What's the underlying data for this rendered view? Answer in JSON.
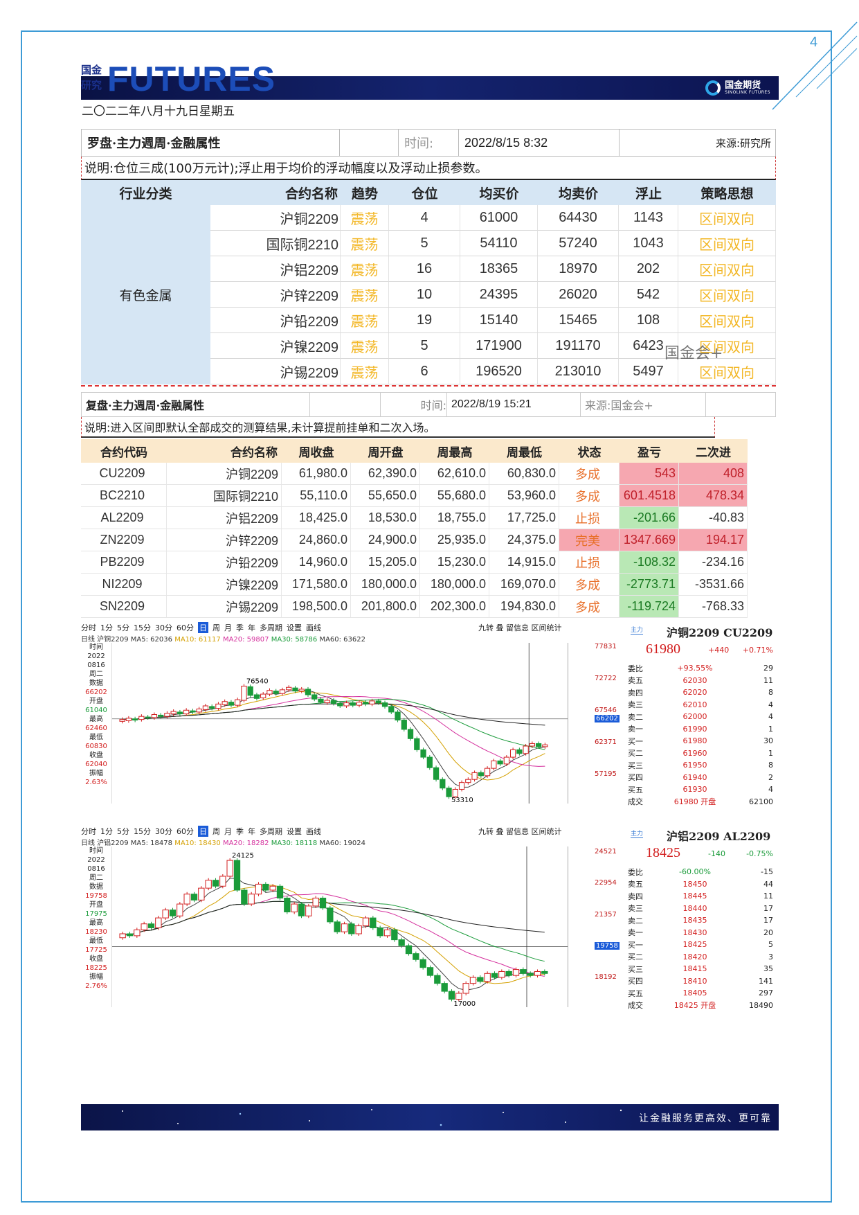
{
  "page_number": "4",
  "header": {
    "brand_small_1": "国金",
    "brand_small_2": "研究",
    "brand_big": "FUTURES",
    "logo_text": "国金期货",
    "logo_sub": "SINOLINK FUTURES"
  },
  "date_line": "二〇二二年八月十九日星期五",
  "table1": {
    "title": "罗盘·主力週周·金融属性",
    "time_label": "时间:",
    "time_value": "2022/8/15 8:32",
    "source": "来源:研究所",
    "note": "说明:仓位三成(100万元计);浮止用于均价的浮动幅度以及浮动止损参数。",
    "headers": [
      "行业分类",
      "合约名称",
      "趋势",
      "仓位",
      "均买价",
      "均卖价",
      "浮止",
      "策略思想"
    ],
    "category": "有色金属",
    "rows": [
      {
        "name": "沪铜2209",
        "trend": "震荡",
        "pos": "4",
        "buy": "61000",
        "sell": "64430",
        "stop": "1143",
        "strategy": "区间双向"
      },
      {
        "name": "国际铜2210",
        "trend": "震荡",
        "pos": "5",
        "buy": "54110",
        "sell": "57240",
        "stop": "1043",
        "strategy": "区间双向"
      },
      {
        "name": "沪铝2209",
        "trend": "震荡",
        "pos": "16",
        "buy": "18365",
        "sell": "18970",
        "stop": "202",
        "strategy": "区间双向"
      },
      {
        "name": "沪锌2209",
        "trend": "震荡",
        "pos": "10",
        "buy": "24395",
        "sell": "26020",
        "stop": "542",
        "strategy": "区间双向"
      },
      {
        "name": "沪铅2209",
        "trend": "震荡",
        "pos": "19",
        "buy": "15140",
        "sell": "15465",
        "stop": "108",
        "strategy": "区间双向"
      },
      {
        "name": "沪镍2209",
        "trend": "震荡",
        "pos": "5",
        "buy": "171900",
        "sell": "191170",
        "stop": "6423",
        "strategy": "区间双向"
      },
      {
        "name": "沪锡2209",
        "trend": "震荡",
        "pos": "6",
        "buy": "196520",
        "sell": "213010",
        "stop": "5497",
        "strategy": "区间双向"
      }
    ]
  },
  "watermark": "国金会+",
  "table2": {
    "title": "复盘·主力週周·金融属性",
    "time_label": "时间:",
    "time_value": "2022/8/19 15:21",
    "source": "来源:国金会+",
    "note": "说明:进入区间即默认全部成交的测算结果,未计算提前挂单和二次入场。",
    "headers": [
      "合约代码",
      "合约名称",
      "周收盘",
      "周开盘",
      "周最高",
      "周最低",
      "状态",
      "盈亏",
      "二次进"
    ],
    "rows": [
      {
        "code": "CU2209",
        "name": "沪铜2209",
        "close": "61,980.0",
        "open": "62,390.0",
        "high": "62,610.0",
        "low": "60,830.0",
        "status": "多成",
        "pnl": "543",
        "second": "408",
        "pc": "pos",
        "sc": "pos",
        "stc": ""
      },
      {
        "code": "BC2210",
        "name": "国际铜2210",
        "close": "55,110.0",
        "open": "55,650.0",
        "high": "55,680.0",
        "low": "53,960.0",
        "status": "多成",
        "pnl": "601.4518",
        "second": "478.34",
        "pc": "pos",
        "sc": "pos",
        "stc": ""
      },
      {
        "code": "AL2209",
        "name": "沪铝2209",
        "close": "18,425.0",
        "open": "18,530.0",
        "high": "18,755.0",
        "low": "17,725.0",
        "status": "止损",
        "pnl": "-201.66",
        "second": "-40.83",
        "pc": "neg",
        "sc": "",
        "stc": ""
      },
      {
        "code": "ZN2209",
        "name": "沪锌2209",
        "close": "24,860.0",
        "open": "24,900.0",
        "high": "25,935.0",
        "low": "24,375.0",
        "status": "完美",
        "pnl": "1347.669",
        "second": "194.17",
        "pc": "pos",
        "sc": "pos",
        "stc": "st-red"
      },
      {
        "code": "PB2209",
        "name": "沪铅2209",
        "close": "14,960.0",
        "open": "15,205.0",
        "high": "15,230.0",
        "low": "14,915.0",
        "status": "止损",
        "pnl": "-108.32",
        "second": "-234.16",
        "pc": "neg",
        "sc": "",
        "stc": ""
      },
      {
        "code": "NI2209",
        "name": "沪镍2209",
        "close": "171,580.0",
        "open": "180,000.0",
        "high": "180,000.0",
        "low": "169,070.0",
        "status": "多成",
        "pnl": "-2773.71",
        "second": "-3531.66",
        "pc": "neg",
        "sc": "",
        "stc": ""
      },
      {
        "code": "SN2209",
        "name": "沪锡2209",
        "close": "198,500.0",
        "open": "201,800.0",
        "high": "202,300.0",
        "low": "194,830.0",
        "status": "多成",
        "pnl": "-119.724",
        "second": "-768.33",
        "pc": "neg",
        "sc": "",
        "stc": ""
      }
    ]
  },
  "chart1": {
    "toolbar": [
      "分时",
      "1分",
      "5分",
      "15分",
      "30分",
      "60分",
      "日",
      "周",
      "月",
      "季",
      "年",
      "多周期",
      "设置",
      "画线"
    ],
    "tools_right": "九转 叠 留信息 区间统计",
    "ma_line": [
      "日线 沪铜2209 MA5: 62036",
      "MA10: 61117",
      "MA20: 59807",
      "MA30: 58786",
      "MA60: 63622"
    ],
    "left_panel": [
      "时间",
      "2022",
      "0816",
      "周二",
      "数据",
      "66202",
      "开盘",
      "61040",
      "最高",
      "62460",
      "最低",
      "60830",
      "收盘",
      "62040",
      "振幅",
      "2.63%"
    ],
    "y_labels": [
      "77831",
      "72722",
      "67546",
      "66202",
      "62371",
      "57195"
    ],
    "peak_label": "76540",
    "trough_label": "53310",
    "quote_tag": "主力",
    "quote_title": "沪铜2209 CU2209",
    "price": "61980",
    "change": "+440",
    "change_pct": "+0.71%",
    "book": [
      [
        "委比",
        "+93.55%",
        "29"
      ],
      [
        "卖五",
        "62030",
        "11"
      ],
      [
        "卖四",
        "62020",
        "8"
      ],
      [
        "卖三",
        "62010",
        "4"
      ],
      [
        "卖二",
        "62000",
        "4"
      ],
      [
        "卖一",
        "61990",
        "1"
      ],
      [
        "买一",
        "61980",
        "30"
      ],
      [
        "买二",
        "61960",
        "1"
      ],
      [
        "买三",
        "61950",
        "8"
      ],
      [
        "买四",
        "61940",
        "2"
      ],
      [
        "买五",
        "61930",
        "4"
      ],
      [
        "成交",
        "61980 开盘",
        "62100"
      ]
    ],
    "candles": [
      [
        65.8,
        66.1
      ],
      [
        65.9,
        66.3
      ],
      [
        66.2,
        66.0
      ],
      [
        66.1,
        66.6
      ],
      [
        66.5,
        66.4
      ],
      [
        66.4,
        66.9
      ],
      [
        66.8,
        66.6
      ],
      [
        66.6,
        67.1
      ],
      [
        67.0,
        67.4
      ],
      [
        67.3,
        67.0
      ],
      [
        67.0,
        67.6
      ],
      [
        67.5,
        67.3
      ],
      [
        67.3,
        67.8
      ],
      [
        67.7,
        68.3
      ],
      [
        68.2,
        67.9
      ],
      [
        67.9,
        68.6
      ],
      [
        68.5,
        69.0
      ],
      [
        68.9,
        68.4
      ],
      [
        68.4,
        69.3
      ],
      [
        69.2,
        71.5
      ],
      [
        71.4,
        70.0
      ],
      [
        70.1,
        69.5
      ],
      [
        69.6,
        70.2
      ],
      [
        70.2,
        70.8
      ],
      [
        70.7,
        70.3
      ],
      [
        70.3,
        70.9
      ],
      [
        70.9,
        71.3
      ],
      [
        71.2,
        70.7
      ],
      [
        70.7,
        71.0
      ],
      [
        71.0,
        70.1
      ],
      [
        70.1,
        69.4
      ],
      [
        69.4,
        68.9
      ],
      [
        68.8,
        69.2
      ],
      [
        69.2,
        68.7
      ],
      [
        68.7,
        68.3
      ],
      [
        68.3,
        68.8
      ],
      [
        68.8,
        68.4
      ],
      [
        68.4,
        68.9
      ],
      [
        68.9,
        68.6
      ],
      [
        68.6,
        69.1
      ],
      [
        69.1,
        68.8
      ],
      [
        68.8,
        68.2
      ],
      [
        68.2,
        67.3
      ],
      [
        67.3,
        66.0
      ],
      [
        66.0,
        64.5
      ],
      [
        64.5,
        63.0
      ],
      [
        63.0,
        61.2
      ],
      [
        61.2,
        60.0
      ],
      [
        60.0,
        58.3
      ],
      [
        58.3,
        56.4
      ],
      [
        56.4,
        55.0
      ],
      [
        55.0,
        53.6
      ],
      [
        53.6,
        54.8
      ],
      [
        54.8,
        55.9
      ],
      [
        55.9,
        56.4
      ],
      [
        56.4,
        57.5
      ],
      [
        57.5,
        57.0
      ],
      [
        57.0,
        58.2
      ],
      [
        58.2,
        59.4
      ],
      [
        59.4,
        58.9
      ],
      [
        58.9,
        60.0
      ],
      [
        60.0,
        61.2
      ],
      [
        61.2,
        60.6
      ],
      [
        60.6,
        61.8
      ],
      [
        61.8,
        62.2
      ],
      [
        62.2,
        61.7
      ],
      [
        61.7,
        62.0
      ]
    ],
    "y_range": [
      52.5,
      78.5
    ],
    "hline": 66.2
  },
  "chart2": {
    "toolbar": [
      "分时",
      "1分",
      "5分",
      "15分",
      "30分",
      "60分",
      "日",
      "周",
      "月",
      "季",
      "年",
      "多周期",
      "设置",
      "画线"
    ],
    "tools_right": "九转 叠 留信息 区间统计",
    "ma_line": [
      "日线 沪铝2209 MA5: 18478",
      "MA10: 18430",
      "MA20: 18282",
      "MA30: 18118",
      "MA60: 19024"
    ],
    "left_panel": [
      "时间",
      "2022",
      "0816",
      "周二",
      "数据",
      "19758",
      "开盘",
      "17975",
      "最高",
      "18230",
      "最低",
      "17725",
      "收盘",
      "18225",
      "振幅",
      "2.76%"
    ],
    "y_labels": [
      "24521",
      "22954",
      "21357",
      "19758",
      "18192"
    ],
    "peak_label": "24125",
    "trough_label": "17000",
    "quote_tag": "主力",
    "quote_title": "沪铝2209 AL2209",
    "price": "18425",
    "change": "-140",
    "change_pct": "-0.75%",
    "book": [
      [
        "委比",
        "-60.00%",
        "-15"
      ],
      [
        "卖五",
        "18450",
        "44"
      ],
      [
        "卖四",
        "18445",
        "11"
      ],
      [
        "卖三",
        "18440",
        "17"
      ],
      [
        "卖二",
        "18435",
        "17"
      ],
      [
        "卖一",
        "18430",
        "20"
      ],
      [
        "买一",
        "18425",
        "5"
      ],
      [
        "买二",
        "18420",
        "3"
      ],
      [
        "买三",
        "18415",
        "35"
      ],
      [
        "买四",
        "18410",
        "141"
      ],
      [
        "买五",
        "18405",
        "297"
      ],
      [
        "成交",
        "18425 开盘",
        "18490"
      ]
    ],
    "candles": [
      [
        20.2,
        20.4
      ],
      [
        20.4,
        20.3
      ],
      [
        20.3,
        20.6
      ],
      [
        20.6,
        20.9
      ],
      [
        20.9,
        20.7
      ],
      [
        20.7,
        21.2
      ],
      [
        21.2,
        21.6
      ],
      [
        21.6,
        21.3
      ],
      [
        21.3,
        21.9
      ],
      [
        21.9,
        22.4
      ],
      [
        22.4,
        22.1
      ],
      [
        22.1,
        22.7
      ],
      [
        22.7,
        23.1
      ],
      [
        23.1,
        22.8
      ],
      [
        22.8,
        23.3
      ],
      [
        23.3,
        24.1
      ],
      [
        24.1,
        22.6
      ],
      [
        22.6,
        21.9
      ],
      [
        21.9,
        22.4
      ],
      [
        22.4,
        22.9
      ],
      [
        22.9,
        22.6
      ],
      [
        22.6,
        22.8
      ],
      [
        22.8,
        22.2
      ],
      [
        22.2,
        21.5
      ],
      [
        21.5,
        21.9
      ],
      [
        21.9,
        21.3
      ],
      [
        21.3,
        21.8
      ],
      [
        21.8,
        22.2
      ],
      [
        22.2,
        21.7
      ],
      [
        21.7,
        21.0
      ],
      [
        21.0,
        20.5
      ],
      [
        20.5,
        20.9
      ],
      [
        20.9,
        20.4
      ],
      [
        20.4,
        20.8
      ],
      [
        20.8,
        21.2
      ],
      [
        21.2,
        20.7
      ],
      [
        20.7,
        20.3
      ],
      [
        20.3,
        20.6
      ],
      [
        20.6,
        20.1
      ],
      [
        20.1,
        19.8
      ],
      [
        19.8,
        19.4
      ],
      [
        19.4,
        19.1
      ],
      [
        19.1,
        18.7
      ],
      [
        18.7,
        18.3
      ],
      [
        18.3,
        17.9
      ],
      [
        17.9,
        17.5
      ],
      [
        17.5,
        17.1
      ],
      [
        17.1,
        17.4
      ],
      [
        17.4,
        17.9
      ],
      [
        17.9,
        18.2
      ],
      [
        18.2,
        18.0
      ],
      [
        18.0,
        18.4
      ],
      [
        18.4,
        18.2
      ],
      [
        18.2,
        18.5
      ],
      [
        18.5,
        18.3
      ],
      [
        18.3,
        18.6
      ],
      [
        18.6,
        18.4
      ],
      [
        18.4,
        18.3
      ],
      [
        18.3,
        18.5
      ],
      [
        18.5,
        18.4
      ]
    ],
    "y_range": [
      16.7,
      24.8
    ],
    "hline": 19.758
  },
  "footer_slogan": "让金融服务更高效、更可靠",
  "colors": {
    "accent": "#3d9bd6",
    "brand_blue": "#1c4db8",
    "orange": "#f3b829",
    "up": "#d21d1d",
    "down": "#1a9b3a"
  }
}
